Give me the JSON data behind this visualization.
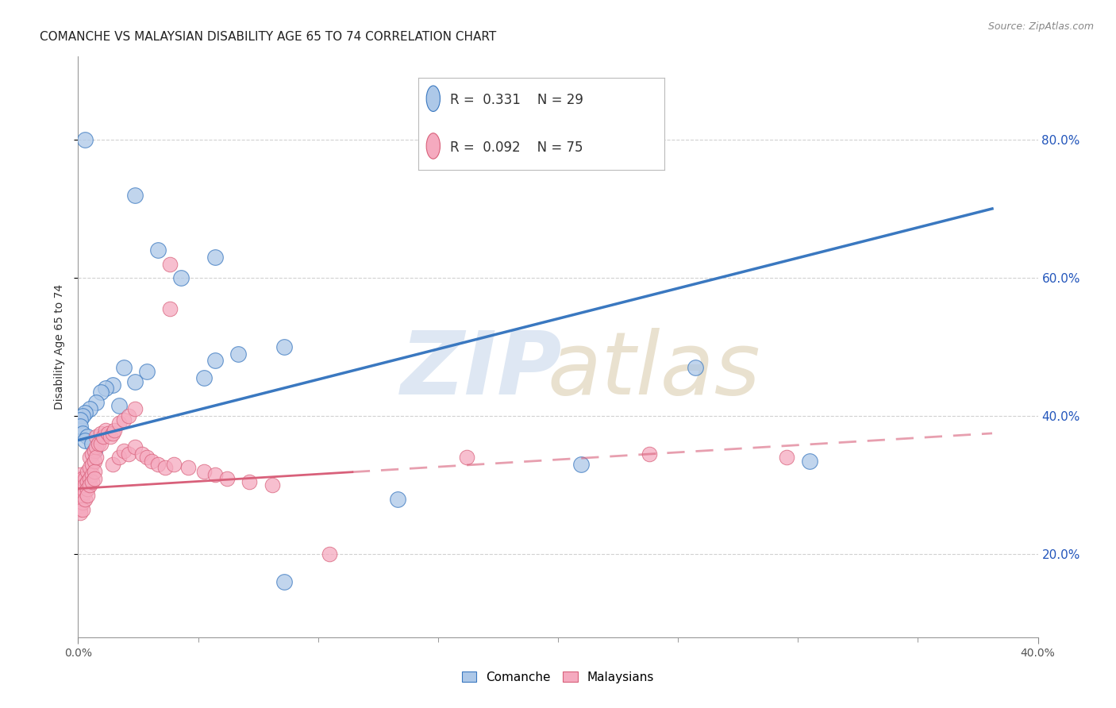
{
  "title": "COMANCHE VS MALAYSIAN DISABILITY AGE 65 TO 74 CORRELATION CHART",
  "source": "Source: ZipAtlas.com",
  "ylabel": "Disability Age 65 to 74",
  "y_ticks_labels": [
    "20.0%",
    "40.0%",
    "60.0%",
    "80.0%"
  ],
  "y_ticks_values": [
    0.2,
    0.4,
    0.6,
    0.8
  ],
  "xlim": [
    0.0,
    0.42
  ],
  "ylim": [
    0.08,
    0.92
  ],
  "comanche_color": "#adc8e8",
  "malaysian_color": "#f5aabf",
  "trendline_comanche_color": "#3a78c0",
  "trendline_malaysian_color": "#d8607a",
  "background_color": "#ffffff",
  "grid_color": "#cccccc",
  "title_fontsize": 11,
  "axis_label_fontsize": 10,
  "tick_fontsize": 10,
  "comanche_points": [
    [
      0.003,
      0.8
    ],
    [
      0.025,
      0.72
    ],
    [
      0.035,
      0.64
    ],
    [
      0.06,
      0.63
    ],
    [
      0.045,
      0.6
    ],
    [
      0.09,
      0.5
    ],
    [
      0.07,
      0.49
    ],
    [
      0.06,
      0.48
    ],
    [
      0.02,
      0.47
    ],
    [
      0.03,
      0.465
    ],
    [
      0.055,
      0.455
    ],
    [
      0.025,
      0.45
    ],
    [
      0.015,
      0.445
    ],
    [
      0.012,
      0.44
    ],
    [
      0.01,
      0.435
    ],
    [
      0.008,
      0.42
    ],
    [
      0.018,
      0.415
    ],
    [
      0.005,
      0.41
    ],
    [
      0.003,
      0.405
    ],
    [
      0.002,
      0.4
    ],
    [
      0.001,
      0.395
    ],
    [
      0.001,
      0.385
    ],
    [
      0.002,
      0.375
    ],
    [
      0.004,
      0.37
    ],
    [
      0.003,
      0.365
    ],
    [
      0.006,
      0.36
    ],
    [
      0.007,
      0.35
    ],
    [
      0.27,
      0.47
    ],
    [
      0.32,
      0.335
    ],
    [
      0.22,
      0.33
    ],
    [
      0.14,
      0.28
    ],
    [
      0.09,
      0.16
    ]
  ],
  "malaysian_points": [
    [
      0.001,
      0.29
    ],
    [
      0.001,
      0.295
    ],
    [
      0.001,
      0.3
    ],
    [
      0.001,
      0.305
    ],
    [
      0.001,
      0.31
    ],
    [
      0.001,
      0.315
    ],
    [
      0.001,
      0.28
    ],
    [
      0.001,
      0.27
    ],
    [
      0.001,
      0.265
    ],
    [
      0.001,
      0.26
    ],
    [
      0.002,
      0.295
    ],
    [
      0.002,
      0.3
    ],
    [
      0.002,
      0.31
    ],
    [
      0.002,
      0.285
    ],
    [
      0.002,
      0.275
    ],
    [
      0.002,
      0.265
    ],
    [
      0.003,
      0.31
    ],
    [
      0.003,
      0.3
    ],
    [
      0.003,
      0.29
    ],
    [
      0.003,
      0.28
    ],
    [
      0.004,
      0.32
    ],
    [
      0.004,
      0.305
    ],
    [
      0.004,
      0.295
    ],
    [
      0.004,
      0.285
    ],
    [
      0.005,
      0.34
    ],
    [
      0.005,
      0.325
    ],
    [
      0.005,
      0.31
    ],
    [
      0.005,
      0.3
    ],
    [
      0.006,
      0.345
    ],
    [
      0.006,
      0.33
    ],
    [
      0.006,
      0.315
    ],
    [
      0.006,
      0.305
    ],
    [
      0.007,
      0.35
    ],
    [
      0.007,
      0.335
    ],
    [
      0.007,
      0.32
    ],
    [
      0.007,
      0.31
    ],
    [
      0.008,
      0.37
    ],
    [
      0.008,
      0.355
    ],
    [
      0.008,
      0.34
    ],
    [
      0.009,
      0.36
    ],
    [
      0.01,
      0.375
    ],
    [
      0.01,
      0.36
    ],
    [
      0.011,
      0.37
    ],
    [
      0.012,
      0.38
    ],
    [
      0.013,
      0.375
    ],
    [
      0.014,
      0.37
    ],
    [
      0.015,
      0.375
    ],
    [
      0.016,
      0.38
    ],
    [
      0.018,
      0.39
    ],
    [
      0.02,
      0.395
    ],
    [
      0.022,
      0.4
    ],
    [
      0.025,
      0.41
    ],
    [
      0.015,
      0.33
    ],
    [
      0.018,
      0.34
    ],
    [
      0.02,
      0.35
    ],
    [
      0.022,
      0.345
    ],
    [
      0.025,
      0.355
    ],
    [
      0.028,
      0.345
    ],
    [
      0.03,
      0.34
    ],
    [
      0.032,
      0.335
    ],
    [
      0.035,
      0.33
    ],
    [
      0.038,
      0.325
    ],
    [
      0.04,
      0.62
    ],
    [
      0.04,
      0.555
    ],
    [
      0.042,
      0.33
    ],
    [
      0.048,
      0.325
    ],
    [
      0.055,
      0.32
    ],
    [
      0.06,
      0.315
    ],
    [
      0.065,
      0.31
    ],
    [
      0.075,
      0.305
    ],
    [
      0.085,
      0.3
    ],
    [
      0.11,
      0.2
    ],
    [
      0.17,
      0.34
    ],
    [
      0.25,
      0.345
    ],
    [
      0.31,
      0.34
    ]
  ]
}
